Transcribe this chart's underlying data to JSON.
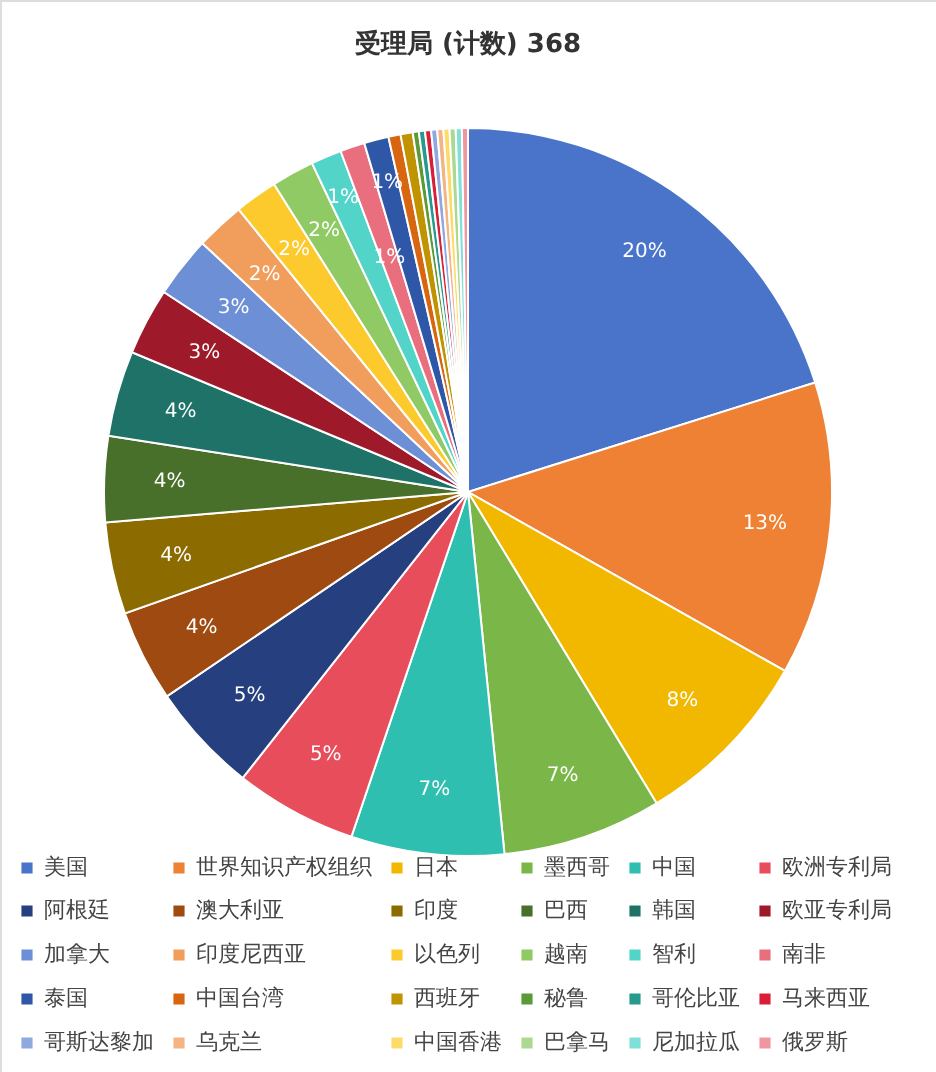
{
  "chart_data": {
    "type": "pie",
    "title": "受理局 (计数) 368",
    "categories": [
      "美国",
      "世界知识产权组织",
      "日本",
      "墨西哥",
      "中国",
      "欧洲专利局",
      "阿根廷",
      "澳大利亚",
      "印度",
      "巴西",
      "韩国",
      "欧亚专利局",
      "加拿大",
      "印度尼西亚",
      "以色列",
      "越南",
      "智利",
      "南非",
      "泰国",
      "中国台湾",
      "西班牙",
      "秘鲁",
      "哥伦比亚",
      "马来西亚",
      "哥斯达黎加",
      "乌克兰",
      "中国香港",
      "巴拿马",
      "尼加拉瓜",
      "俄罗斯"
    ],
    "values": [
      20.14,
      13.04,
      8.15,
      7.07,
      6.79,
      5.43,
      4.89,
      4.08,
      4.08,
      3.8,
      3.8,
      2.99,
      2.72,
      2.17,
      1.9,
      1.9,
      1.36,
      1.09,
      1.09,
      0.54,
      0.54,
      0.27,
      0.27,
      0.27,
      0.27,
      0.27,
      0.27,
      0.27,
      0.27,
      0.27
    ],
    "value_labels": [
      "20%",
      "13%",
      "8%",
      "7%",
      "7%",
      "5%",
      "5%",
      "4%",
      "4%",
      "4%",
      "4%",
      "3%",
      "3%",
      "2%",
      "2%",
      "2%",
      "1%",
      "1%",
      "1%",
      null,
      null,
      null,
      null,
      null,
      null,
      null,
      null,
      null,
      null,
      null
    ],
    "colors": [
      "#4a74c9",
      "#ee8133",
      "#f2b800",
      "#7ab648",
      "#2fbfb0",
      "#e84d5b",
      "#253f7f",
      "#9e4a10",
      "#8c6c00",
      "#48702a",
      "#1f7268",
      "#9e1a2a",
      "#6d8fd6",
      "#f19e5c",
      "#fdca2e",
      "#8fca65",
      "#52d4c8",
      "#ea6f7e",
      "#2f57a8",
      "#d86510",
      "#c09300",
      "#5c9a38",
      "#269a8e",
      "#d91f37",
      "#8ea9e0",
      "#f4b483",
      "#fedb67",
      "#acd88f",
      "#7fe0d8",
      "#ef96a1"
    ],
    "legend": "bottom"
  }
}
